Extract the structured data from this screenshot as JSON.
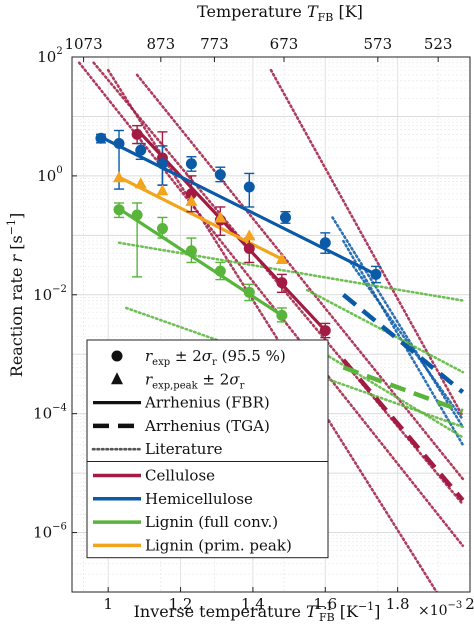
{
  "chart_data": {
    "type": "line",
    "xlabel": "Inverse temperature T_FB^-1 [K^-1]",
    "xlabel_parts": {
      "main": "Inverse temperature ",
      "sym": "T",
      "sub": "FB",
      "sup": "−1",
      "unit": " [K",
      "unit_sup": "−1",
      "unit_end": "]"
    },
    "xexp": "×10",
    "xexp_sup": "−3",
    "ylabel": "Reaction rate r [s^-1]",
    "ylabel_parts": {
      "main": "Reaction rate ",
      "sym": "r",
      "unit": " [s",
      "unit_sup": "−1",
      "unit_end": "]"
    },
    "top_label": "Temperature T_FB [K]",
    "top_label_parts": {
      "main": "Temperature ",
      "sym": "T",
      "sub": "FB",
      "unit": " [K]"
    },
    "xlim": [
      0.9,
      2.0
    ],
    "yscale": "log",
    "ylim": [
      1e-07,
      100
    ],
    "x_ticks": [
      1,
      1.2,
      1.4,
      1.6,
      1.8,
      2
    ],
    "x_tick_labels": [
      "1",
      "1.2",
      "1.4",
      "1.6",
      "1.8",
      "2"
    ],
    "y_ticks": [
      1e-06,
      0.0001,
      0.01,
      1,
      100
    ],
    "y_tick_labels": [
      {
        "base": "10",
        "exp": "−6"
      },
      {
        "base": "10",
        "exp": "−4"
      },
      {
        "base": "10",
        "exp": "−2"
      },
      {
        "base": "10",
        "exp": "0"
      },
      {
        "base": "10",
        "exp": "2"
      }
    ],
    "top_ticks": [
      1073,
      873,
      773,
      673,
      573,
      523
    ],
    "top_tick_labels": [
      "1073",
      "873",
      "773",
      "673",
      "573",
      "523"
    ],
    "grid": true,
    "colors": {
      "cellulose": "#a11b43",
      "hemicellulose": "#0a5aa8",
      "lignin_full": "#58b43a",
      "lignin_peak": "#f2a51c"
    },
    "legend": {
      "placement": "bottom-left",
      "entries": [
        {
          "style": "circle",
          "label": "r_exp ± 2σ_r (95.5%)",
          "parts": {
            "sym": "r",
            "sub": "exp",
            "rest": " ± 2",
            "sig": "σ",
            "sig_sub": "r",
            "tail": " (95.5 %)"
          }
        },
        {
          "style": "triangle",
          "label": "r_exp,peak ± 2σ_r",
          "parts": {
            "sym": "r",
            "sub": "exp,peak",
            "rest": " ± 2",
            "sig": "σ",
            "sig_sub": "r",
            "tail": ""
          }
        },
        {
          "style": "solid",
          "label": "Arrhenius (FBR)"
        },
        {
          "style": "dashed",
          "label": "Arrhenius (TGA)"
        },
        {
          "style": "dotted",
          "label": "Literature"
        },
        {
          "style": "color",
          "color": "#a11b43",
          "label": "Cellulose"
        },
        {
          "style": "color",
          "color": "#0a5aa8",
          "label": "Hemicellulose"
        },
        {
          "style": "color",
          "color": "#58b43a",
          "label": "Lignin (full conv.)"
        },
        {
          "style": "color",
          "color": "#f2a51c",
          "label": "Lignin (prim. peak)"
        }
      ]
    },
    "series": [
      {
        "name": "Cellulose",
        "color": "#a11b43",
        "marker": "circle",
        "points": [
          [
            1.08,
            5.0
          ],
          [
            1.15,
            2.0
          ],
          [
            1.23,
            0.5
          ],
          [
            1.31,
            0.18
          ],
          [
            1.39,
            0.06
          ],
          [
            1.48,
            0.016
          ],
          [
            1.6,
            0.0025
          ]
        ],
        "errors": [
          [
            3.5,
            7.0
          ],
          [
            0.7,
            5.5
          ],
          [
            0.25,
            1.0
          ],
          [
            0.1,
            0.3
          ],
          [
            0.035,
            0.09
          ],
          [
            0.011,
            0.022
          ],
          [
            0.0019,
            0.0033
          ]
        ],
        "fbr": [
          [
            1.08,
            6.0
          ],
          [
            1.6,
            0.0025
          ]
        ],
        "tga": [
          [
            1.65,
            0.0008
          ],
          [
            1.98,
            3.5e-06
          ]
        ]
      },
      {
        "name": "Hemicellulose",
        "color": "#0a5aa8",
        "marker": "circle",
        "points": [
          [
            0.98,
            4.3
          ],
          [
            1.03,
            3.5
          ],
          [
            1.09,
            2.7
          ],
          [
            1.15,
            1.6
          ],
          [
            1.23,
            1.6
          ],
          [
            1.31,
            1.05
          ],
          [
            1.39,
            0.65
          ],
          [
            1.49,
            0.2
          ],
          [
            1.6,
            0.075
          ],
          [
            1.74,
            0.022
          ]
        ],
        "errors": [
          [
            3.6,
            5.0
          ],
          [
            0.6,
            5.8
          ],
          [
            1.9,
            3.5
          ],
          [
            0.7,
            3.2
          ],
          [
            1.2,
            2.1
          ],
          [
            0.8,
            1.4
          ],
          [
            0.3,
            1.1
          ],
          [
            0.16,
            0.25
          ],
          [
            0.05,
            0.11
          ],
          [
            0.016,
            0.03
          ]
        ],
        "fbr": [
          [
            0.98,
            4.5
          ],
          [
            1.74,
            0.022
          ]
        ],
        "tga": [
          [
            1.65,
            0.01
          ],
          [
            1.98,
            0.00023
          ]
        ]
      },
      {
        "name": "Lignin (full conv.)",
        "color": "#58b43a",
        "marker": "circle",
        "points": [
          [
            1.03,
            0.27
          ],
          [
            1.08,
            0.22
          ],
          [
            1.15,
            0.13
          ],
          [
            1.23,
            0.055
          ],
          [
            1.31,
            0.025
          ],
          [
            1.39,
            0.011
          ],
          [
            1.48,
            0.0045
          ]
        ],
        "errors": [
          [
            0.2,
            0.35
          ],
          [
            0.02,
            0.35
          ],
          [
            0.09,
            0.2
          ],
          [
            0.035,
            0.09
          ],
          [
            0.018,
            0.035
          ],
          [
            0.008,
            0.015
          ],
          [
            0.0035,
            0.006
          ]
        ],
        "fbr": [
          [
            1.03,
            0.28
          ],
          [
            1.48,
            0.0045
          ]
        ],
        "tga": [
          [
            1.65,
            0.0006
          ],
          [
            1.98,
            0.00011
          ]
        ]
      },
      {
        "name": "Lignin (prim. peak)",
        "color": "#f2a51c",
        "marker": "triangle",
        "points": [
          [
            1.03,
            0.95
          ],
          [
            1.09,
            0.75
          ],
          [
            1.15,
            0.57
          ],
          [
            1.23,
            0.38
          ],
          [
            1.31,
            0.2
          ],
          [
            1.39,
            0.1
          ],
          [
            1.48,
            0.04
          ]
        ],
        "errors": null,
        "fbr": [
          [
            1.03,
            0.95
          ],
          [
            1.48,
            0.04
          ]
        ],
        "tga": null
      }
    ],
    "literature": [
      {
        "color": "#a11b43",
        "line": [
          [
            0.92,
            80
          ],
          [
            1.98,
            6e-07
          ]
        ]
      },
      {
        "color": "#a11b43",
        "line": [
          [
            0.96,
            80
          ],
          [
            1.98,
            3e-06
          ]
        ]
      },
      {
        "color": "#a11b43",
        "line": [
          [
            1.0,
            60
          ],
          [
            1.98,
            2e-08
          ]
        ]
      },
      {
        "color": "#a11b43",
        "line": [
          [
            1.08,
            50
          ],
          [
            1.98,
            8e-06
          ]
        ]
      },
      {
        "color": "#a11b43",
        "line": [
          [
            1.45,
            60
          ],
          [
            1.98,
            9e-05
          ]
        ]
      },
      {
        "color": "#0a5aa8",
        "line": [
          [
            1.62,
            0.2
          ],
          [
            1.98,
            6e-05
          ]
        ]
      },
      {
        "color": "#0a5aa8",
        "line": [
          [
            1.65,
            0.08
          ],
          [
            1.98,
            3e-05
          ]
        ]
      },
      {
        "color": "#0a5aa8",
        "line": [
          [
            1.67,
            0.035
          ],
          [
            1.98,
            8e-05
          ]
        ]
      },
      {
        "color": "#58b43a",
        "line": [
          [
            1.03,
            0.075
          ],
          [
            1.98,
            0.008
          ]
        ]
      },
      {
        "color": "#58b43a",
        "line": [
          [
            1.05,
            0.006
          ],
          [
            1.98,
            6e-05
          ]
        ]
      },
      {
        "color": "#58b43a",
        "line": [
          [
            1.55,
            0.012
          ],
          [
            1.98,
            0.0005
          ]
        ]
      },
      {
        "color": "#58b43a",
        "line": [
          [
            1.6,
            0.001
          ],
          [
            1.98,
            4e-05
          ]
        ]
      }
    ]
  }
}
